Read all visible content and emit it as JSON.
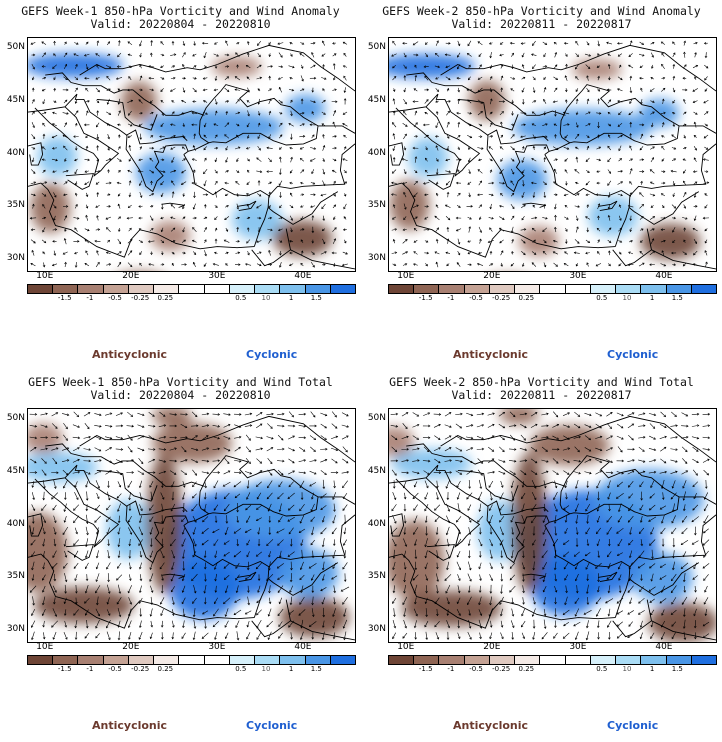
{
  "panels": [
    {
      "title": "GEFS Week-1 850-hPa Vorticity and Wind Anomaly",
      "valid": "Valid: 20220804 - 20220810",
      "variant": "anomaly"
    },
    {
      "title": "GEFS Week-2 850-hPa Vorticity and Wind Anomaly",
      "valid": "Valid: 20220811 - 20220817",
      "variant": "anomaly2"
    },
    {
      "title": "GEFS Week-1 850-hPa Vorticity and Wind Total",
      "valid": "Valid: 20220804 - 20220810",
      "variant": "total"
    },
    {
      "title": "GEFS Week-2 850-hPa Vorticity and Wind Total",
      "valid": "Valid: 20220811 - 20220817",
      "variant": "total2"
    }
  ],
  "lat_labels": [
    "50N",
    "45N",
    "40N",
    "35N",
    "30N"
  ],
  "lon_labels": [
    "10E",
    "20E",
    "30E",
    "40E"
  ],
  "colorbar": {
    "labels": [
      "-1.5",
      "-1",
      "-0.5",
      "-0.25",
      "0.25",
      "0.5",
      "1",
      "1.5"
    ],
    "colors": [
      "#6e4536",
      "#8f6554",
      "#a88072",
      "#c4a294",
      "#dfc9c0",
      "#f4eae6",
      "#ffffff",
      "#ffffff",
      "#d6f0fa",
      "#aadcf5",
      "#7ec0ee",
      "#4a96e6",
      "#1f6fe0"
    ],
    "scale_note": "10"
  },
  "legend": {
    "anticyclonic": "Anticyclonic",
    "cyclonic": "Cyclonic"
  },
  "colors": {
    "anticyclonic": "#6b3a2e",
    "cyclonic": "#1f5fd0",
    "brown": "#9a6f5e",
    "blue": "#2f80e8"
  }
}
